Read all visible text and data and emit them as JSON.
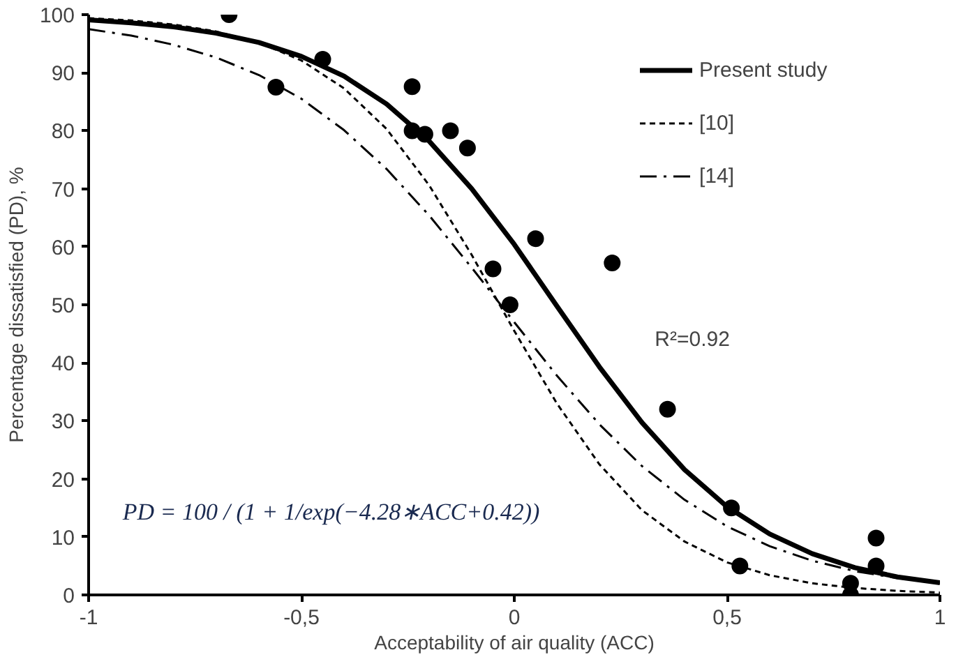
{
  "chart_data": {
    "type": "line",
    "xlabel": "Acceptability of air quality (ACC)",
    "ylabel": "Percentage dissatisfied (PD), %",
    "xlim": [
      -1,
      1
    ],
    "ylim": [
      0,
      100
    ],
    "xticks": [
      {
        "value": -1,
        "label": "-1"
      },
      {
        "value": -0.5,
        "label": "-0,5"
      },
      0,
      {
        "value": 0.5,
        "label": "0,5"
      },
      1
    ],
    "yticks": [
      0,
      10,
      20,
      30,
      40,
      50,
      60,
      70,
      80,
      90,
      100
    ],
    "grid": false,
    "legend": "top right",
    "annotations": [
      "R²=0.92",
      "PD = 100 / (1 + 1/exp(−4.28∗ACC+0.42))"
    ],
    "series": [
      {
        "type": "scatter",
        "color": "#000000",
        "marker": "circle",
        "x": [
          -0.67,
          -0.56,
          -0.45,
          -0.24,
          -0.24,
          -0.21,
          -0.15,
          -0.11,
          -0.05,
          0.05,
          -0.01,
          0.23,
          0.36,
          0.51,
          0.53,
          0.85,
          0.85,
          0.79,
          0.79
        ],
        "values": [
          100,
          87.5,
          92.3,
          87.6,
          80,
          79.4,
          80,
          77,
          56.2,
          61.4,
          50,
          57.2,
          32,
          15,
          5,
          9.8,
          5,
          2,
          0
        ]
      },
      {
        "name": "Present study",
        "color": "#000000",
        "line_style": "solid",
        "x": [
          -1,
          -0.9,
          -0.8,
          -0.7,
          -0.6,
          -0.5,
          -0.4,
          -0.3,
          -0.2,
          -0.1,
          0,
          0.1,
          0.2,
          0.3,
          0.4,
          0.5,
          0.6,
          0.7,
          0.8,
          0.9,
          1
        ],
        "values": [
          99.1,
          98.6,
          97.9,
          96.8,
          95.2,
          92.8,
          89.4,
          84.6,
          78.2,
          70.0,
          60.4,
          49.8,
          39.3,
          29.7,
          21.6,
          15.2,
          10.5,
          7.1,
          4.7,
          3.1,
          2.1
        ]
      },
      {
        "name": "[10]",
        "color": "#000000",
        "line_style": "dashed",
        "x": [
          -1,
          -0.9,
          -0.8,
          -0.7,
          -0.6,
          -0.5,
          -0.4,
          -0.3,
          -0.2,
          -0.1,
          0,
          0.1,
          0.2,
          0.3,
          0.4,
          0.5,
          0.6,
          0.7,
          0.8,
          0.9,
          1
        ],
        "values": [
          99.4,
          99.0,
          98.3,
          97.1,
          95.2,
          92.1,
          87.3,
          80.3,
          70.6,
          58.6,
          45.5,
          33.0,
          22.5,
          14.6,
          9.2,
          5.6,
          3.4,
          2.0,
          1.2,
          0.7,
          0.4
        ]
      },
      {
        "name": "[14]",
        "color": "#000000",
        "line_style": "dashdot",
        "x": [
          -1,
          -0.9,
          -0.8,
          -0.7,
          -0.6,
          -0.5,
          -0.4,
          -0.3,
          -0.2,
          -0.1,
          0,
          0.1,
          0.2,
          0.3,
          0.4,
          0.5,
          0.6,
          0.7,
          0.8,
          0.9,
          1
        ],
        "values": [
          97.5,
          96.4,
          94.8,
          92.6,
          89.6,
          85.5,
          80.1,
          73.4,
          65.4,
          56.4,
          47.0,
          37.8,
          29.4,
          22.2,
          16.4,
          11.8,
          8.4,
          5.9,
          4.1,
          2.9,
          2.0
        ]
      }
    ]
  }
}
